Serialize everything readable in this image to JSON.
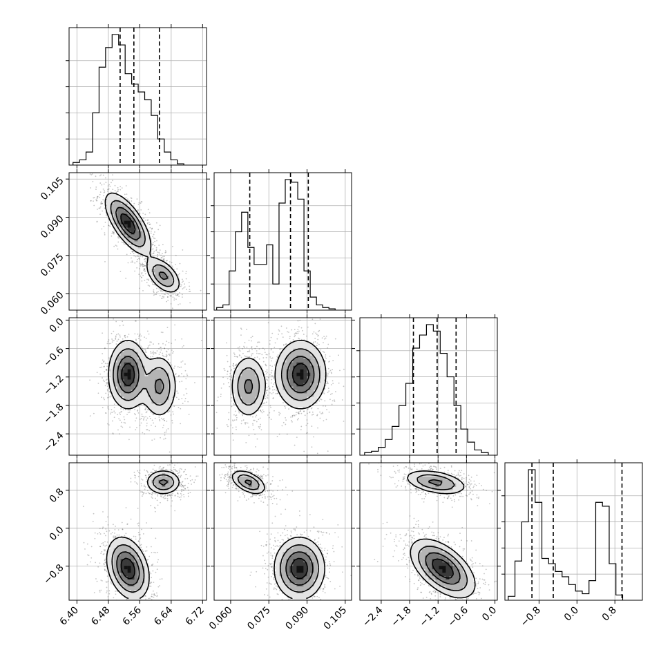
{
  "chart_data": {
    "type": "corner",
    "parameters": [
      {
        "range": [
          6.38,
          6.73
        ],
        "ticks": [
          6.4,
          6.48,
          6.56,
          6.64,
          6.72
        ],
        "tick_labels": [
          "6.40",
          "6.48",
          "6.56",
          "6.64",
          "6.72"
        ],
        "quantiles": [
          6.51,
          6.545,
          6.61
        ],
        "histogram": {
          "bin_start": 6.39,
          "bin_width": 0.0166,
          "counts": [
            2,
            4,
            10,
            40,
            75,
            90,
            100,
            92,
            70,
            62,
            56,
            50,
            38,
            20,
            10,
            4,
            1
          ]
        }
      },
      {
        "range": [
          0.0535,
          0.1075
        ],
        "ticks": [
          0.06,
          0.075,
          0.09,
          0.105
        ],
        "tick_labels": [
          "0.060",
          "0.075",
          "0.090",
          "0.105"
        ],
        "quantiles": [
          0.0675,
          0.0835,
          0.0905
        ],
        "histogram": {
          "bin_start": 0.0545,
          "bin_width": 0.00245,
          "counts": [
            2,
            4,
            30,
            60,
            75,
            48,
            35,
            35,
            50,
            20,
            82,
            100,
            98,
            85,
            30,
            10,
            4,
            2,
            1
          ]
        }
      },
      {
        "range": [
          -2.85,
          0.05
        ],
        "ticks": [
          -2.4,
          -1.8,
          -1.2,
          -0.6,
          0.0
        ],
        "tick_labels": [
          "−2.4",
          "−1.8",
          "−1.2",
          "−0.6",
          "0.0"
        ],
        "quantiles": [
          -1.72,
          -1.22,
          -0.82
        ],
        "histogram": {
          "bin_start": -2.75,
          "bin_width": 0.145,
          "counts": [
            2,
            3,
            6,
            12,
            22,
            38,
            55,
            82,
            92,
            100,
            95,
            78,
            60,
            38,
            20,
            10,
            4,
            2
          ]
        }
      },
      {
        "range": [
          -1.52,
          1.38
        ],
        "ticks": [
          -0.8,
          0.0,
          0.8
        ],
        "tick_labels": [
          "−0.8",
          "0.0",
          "0.8"
        ],
        "quantiles": [
          -0.95,
          -0.5,
          0.95
        ],
        "histogram": {
          "bin_start": -1.45,
          "bin_width": 0.142,
          "counts": [
            3,
            30,
            60,
            100,
            75,
            32,
            28,
            22,
            18,
            12,
            7,
            5,
            15,
            75,
            72,
            28,
            4
          ]
        }
      }
    ],
    "joint_clusters": {
      "p1_p0": [
        {
          "mx": 6.53,
          "my": 0.0875,
          "sx": 0.028,
          "sy": 0.0058,
          "rho": -0.7,
          "w": 0.62
        },
        {
          "mx": 6.62,
          "my": 0.067,
          "sx": 0.022,
          "sy": 0.0035,
          "rho": -0.5,
          "w": 0.38
        }
      ],
      "p2_p0": [
        {
          "mx": 6.53,
          "my": -1.15,
          "sx": 0.024,
          "sy": 0.35,
          "rho": 0.0,
          "w": 0.62
        },
        {
          "mx": 6.61,
          "my": -1.4,
          "sx": 0.022,
          "sy": 0.33,
          "rho": 0.0,
          "w": 0.38
        }
      ],
      "p3_p0": [
        {
          "mx": 6.53,
          "my": -0.85,
          "sx": 0.026,
          "sy": 0.32,
          "rho": -0.3,
          "w": 0.62
        },
        {
          "mx": 6.62,
          "my": 0.97,
          "sx": 0.022,
          "sy": 0.13,
          "rho": 0.0,
          "w": 0.38
        }
      ],
      "p2_p1": [
        {
          "mx": 0.0875,
          "my": -1.15,
          "sx": 0.0048,
          "sy": 0.35,
          "rho": 0.0,
          "w": 0.62
        },
        {
          "mx": 0.067,
          "my": -1.4,
          "sx": 0.0035,
          "sy": 0.33,
          "rho": 0.0,
          "w": 0.38
        }
      ],
      "p3_p1": [
        {
          "mx": 0.087,
          "my": -0.85,
          "sx": 0.0048,
          "sy": 0.32,
          "rho": 0.0,
          "w": 0.62
        },
        {
          "mx": 0.067,
          "my": 0.97,
          "sx": 0.0035,
          "sy": 0.13,
          "rho": -0.5,
          "w": 0.38
        }
      ],
      "p3_p2": [
        {
          "mx": -1.1,
          "my": -0.85,
          "sx": 0.33,
          "sy": 0.3,
          "rho": -0.55,
          "w": 0.62
        },
        {
          "mx": -1.25,
          "my": 0.97,
          "sx": 0.33,
          "sy": 0.13,
          "rho": -0.4,
          "w": 0.38
        }
      ]
    },
    "grid": true,
    "legend": "none"
  }
}
